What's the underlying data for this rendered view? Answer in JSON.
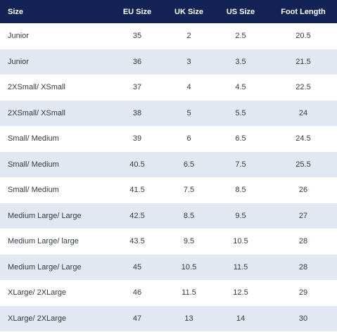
{
  "table": {
    "headers": [
      "Size",
      "EU Size",
      "UK Size",
      "US Size",
      "Foot Length"
    ],
    "rows": [
      [
        "Junior",
        "35",
        "2",
        "2.5",
        "20.5"
      ],
      [
        "Junior",
        "36",
        "3",
        "3.5",
        "21.5"
      ],
      [
        "2XSmall/ XSmall",
        "37",
        "4",
        "4.5",
        "22.5"
      ],
      [
        "2XSmall/ XSmall",
        "38",
        "5",
        "5.5",
        "24"
      ],
      [
        "Small/ Medium",
        "39",
        "6",
        "6.5",
        "24.5"
      ],
      [
        "Small/ Medium",
        "40.5",
        "6.5",
        "7.5",
        "25.5"
      ],
      [
        "Small/ Medium",
        "41.5",
        "7.5",
        "8.5",
        "26"
      ],
      [
        "Medium Large/ Large",
        "42.5",
        "8.5",
        "9.5",
        "27"
      ],
      [
        "Medium Large/ large",
        "43.5",
        "9.5",
        "10.5",
        "28"
      ],
      [
        "Medium Large/ Large",
        "45",
        "10.5",
        "11.5",
        "28"
      ],
      [
        "XLarge/ 2XLarge",
        "46",
        "11.5",
        "12.5",
        "29"
      ],
      [
        "XLarge/ 2XLarge",
        "47",
        "13",
        "14",
        "30"
      ]
    ]
  },
  "colors": {
    "header_background": "#132355",
    "header_text": "#ffffff",
    "row_stripe": "#e2e8f1",
    "body_text": "#333a44"
  }
}
